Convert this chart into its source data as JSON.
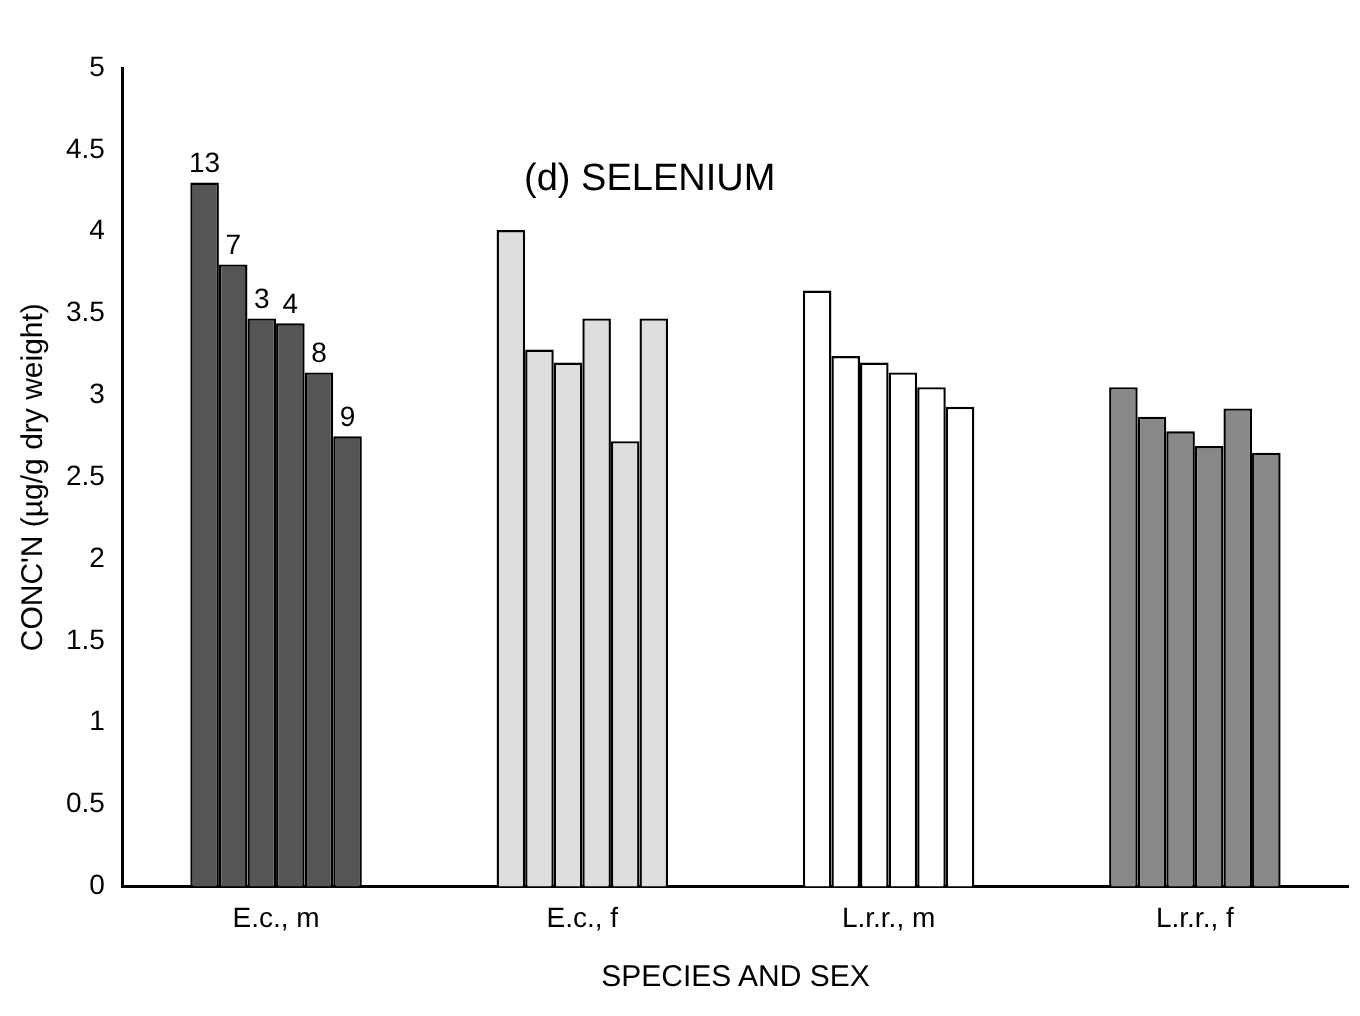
{
  "chart_data": {
    "type": "bar",
    "title": "(d) SELENIUM",
    "xlabel": "SPECIES AND SEX",
    "ylabel": "CONC'N (µg/g dry weight)",
    "categories": [
      "E.c., m",
      "E.c., f",
      "L.r.r., m",
      "L.r.r., f"
    ],
    "series": [
      {
        "colors": [
          "#555555",
          "#dddddd",
          "#ffffff",
          "#888888"
        ],
        "values": [
          4.3,
          4.01,
          3.64,
          3.05
        ]
      },
      {
        "colors": [
          "#555555",
          "#dddddd",
          "#ffffff",
          "#888888"
        ],
        "values": [
          3.8,
          3.28,
          3.24,
          2.87
        ]
      },
      {
        "colors": [
          "#555555",
          "#dddddd",
          "#ffffff",
          "#888888"
        ],
        "values": [
          3.47,
          3.2,
          3.2,
          2.78
        ]
      },
      {
        "colors": [
          "#555555",
          "#dddddd",
          "#ffffff",
          "#888888"
        ],
        "values": [
          3.44,
          3.47,
          3.14,
          2.69
        ]
      },
      {
        "colors": [
          "#555555",
          "#dddddd",
          "#ffffff",
          "#888888"
        ],
        "values": [
          3.14,
          2.72,
          3.05,
          2.92
        ]
      },
      {
        "colors": [
          "#555555",
          "#dddddd",
          "#ffffff",
          "#888888"
        ],
        "values": [
          2.75,
          3.47,
          2.93,
          2.65
        ]
      }
    ],
    "annotations": [
      "13",
      "7",
      "3",
      "4",
      "8",
      "9"
    ],
    "ylim": [
      0,
      5
    ],
    "yticks": [
      0,
      0.5,
      1,
      1.5,
      2,
      2.5,
      3,
      3.5,
      4,
      4.5,
      5
    ],
    "grid": false,
    "legend": false
  }
}
